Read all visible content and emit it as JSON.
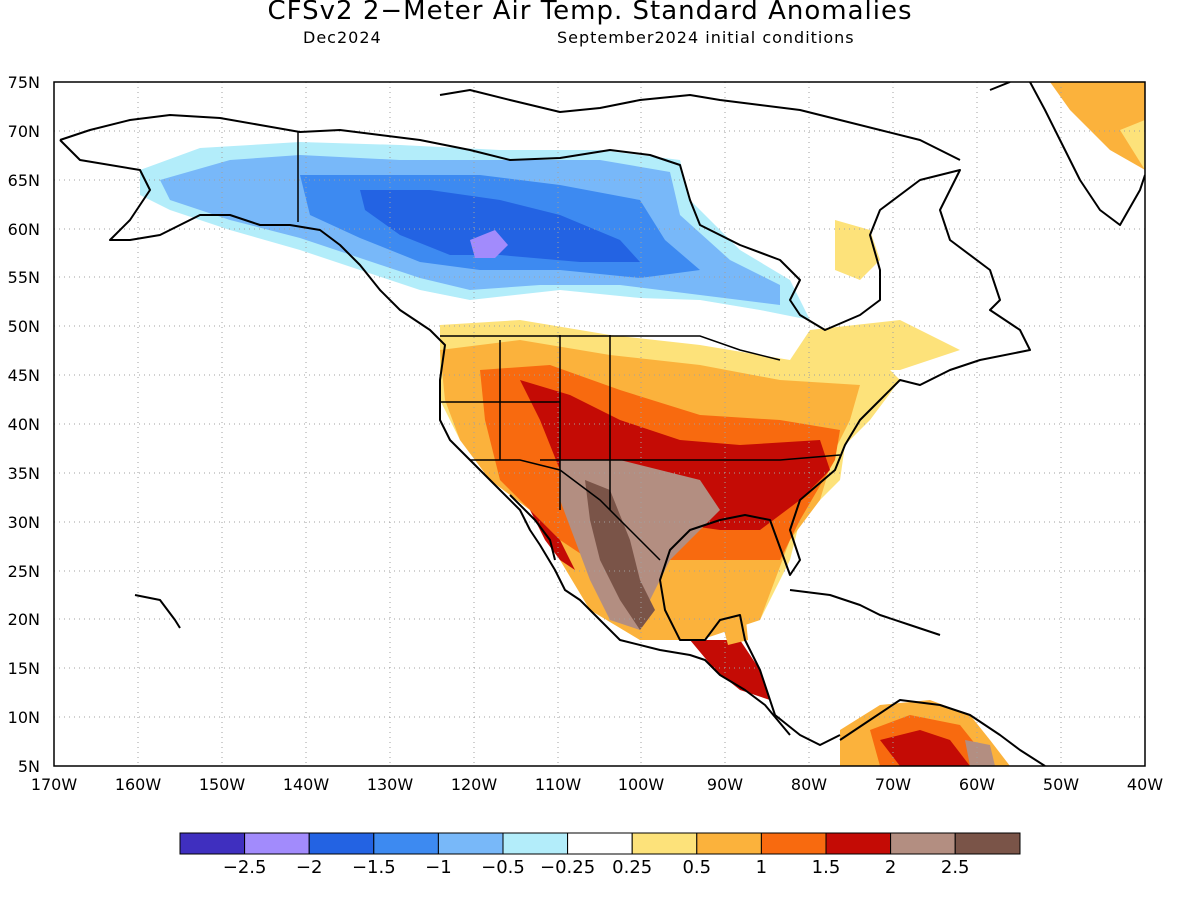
{
  "title": "CFSv2 2−Meter Air Temp. Standard Anomalies",
  "subtitle_left": "Dec2024",
  "subtitle_right": "September2024 initial conditions",
  "map": {
    "lon_range": [
      -170,
      -40
    ],
    "lat_range": [
      5,
      75
    ],
    "lat_labels": [
      "75N",
      "70N",
      "65N",
      "60N",
      "55N",
      "50N",
      "45N",
      "40N",
      "35N",
      "30N",
      "25N",
      "20N",
      "15N",
      "10N",
      "5N"
    ],
    "lon_labels": [
      "170W",
      "160W",
      "150W",
      "140W",
      "130W",
      "120W",
      "110W",
      "100W",
      "90W",
      "80W",
      "70W",
      "60W",
      "50W",
      "40W"
    ]
  },
  "colorbar": {
    "colors": [
      "#3f2fbf",
      "#a28bfc",
      "#2363e3",
      "#3d8af1",
      "#78b8f9",
      "#b3edfa",
      "#ffffff",
      "#fde27a",
      "#fbb23c",
      "#f86a0f",
      "#c40b05",
      "#b38e81",
      "#7a5448"
    ],
    "labels": [
      "−2.5",
      "−2",
      "−1.5",
      "−1",
      "−0.5",
      "−0.25",
      "0.25",
      "0.5",
      "1",
      "1.5",
      "2",
      "2.5"
    ]
  },
  "colors": {
    "land_outline": "#000000",
    "grid": "#a0a0a0"
  }
}
